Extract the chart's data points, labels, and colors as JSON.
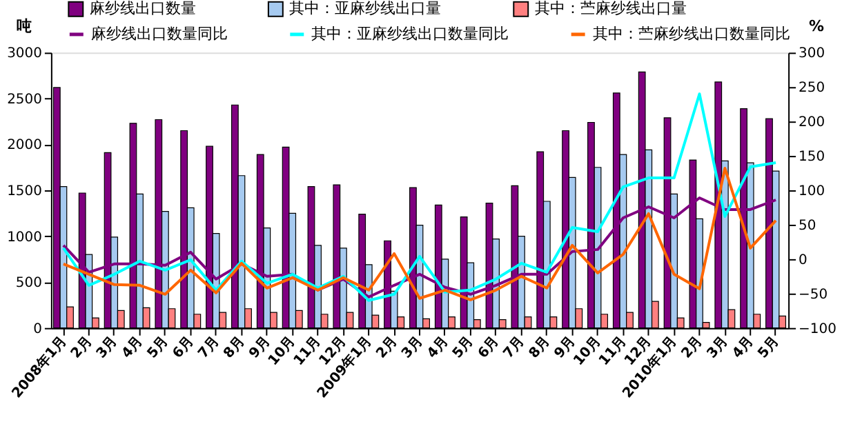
{
  "chart_data": {
    "type": "bar",
    "ylabel": "吨",
    "y2label": "%",
    "categories": [
      "2008年1月",
      "2月",
      "3月",
      "4月",
      "5月",
      "6月",
      "7月",
      "8月",
      "9月",
      "10月",
      "11月",
      "12月",
      "2009年1月",
      "2月",
      "3月",
      "4月",
      "5月",
      "6月",
      "7月",
      "8月",
      "9月",
      "10月",
      "11月",
      "12月",
      "2010年1月",
      "2月",
      "3月",
      "4月",
      "5月"
    ],
    "series": [
      {
        "name": "麻纱线出口数量",
        "type": "bar",
        "color": "#800080",
        "values": [
          2620,
          1470,
          1910,
          2230,
          2270,
          2150,
          1980,
          2430,
          1890,
          1970,
          1540,
          1560,
          1240,
          950,
          1530,
          1340,
          1210,
          1360,
          1550,
          1920,
          2150,
          2240,
          2560,
          2790,
          2290,
          1830,
          2680,
          2390,
          2280
        ]
      },
      {
        "name": "其中：亚麻纱线出口量",
        "type": "bar",
        "color": "#a6caf0",
        "values": [
          1540,
          800,
          990,
          1460,
          1270,
          1310,
          1030,
          1660,
          1090,
          1250,
          900,
          870,
          690,
          400,
          1120,
          750,
          710,
          970,
          1000,
          1380,
          1640,
          1750,
          1890,
          1940,
          1460,
          1190,
          1820,
          1800,
          1710
        ]
      },
      {
        "name": "其中：苎麻纱线出口量",
        "type": "bar",
        "color": "#ff8080",
        "values": [
          230,
          110,
          190,
          220,
          210,
          150,
          170,
          210,
          170,
          190,
          150,
          170,
          140,
          120,
          100,
          120,
          90,
          90,
          120,
          120,
          210,
          150,
          170,
          290,
          110,
          60,
          200,
          150,
          130
        ]
      },
      {
        "name": "麻纱线出口数量同比",
        "type": "line",
        "axis": "y2",
        "color": "#800080",
        "values": [
          20,
          -19,
          -7,
          -7,
          -9,
          10,
          -29,
          -7,
          -25,
          -22,
          -45,
          -29,
          -55,
          -38,
          -22,
          -41,
          -51,
          -38,
          -22,
          -22,
          11,
          14,
          60,
          76,
          60,
          89,
          72,
          72,
          86
        ]
      },
      {
        "name": "其中：亚麻纱线出口数量同比",
        "type": "line",
        "axis": "y2",
        "color": "#00ffff",
        "values": [
          16,
          -38,
          -22,
          -3,
          -16,
          -1,
          -45,
          -3,
          -35,
          -22,
          -42,
          -25,
          -60,
          -51,
          4,
          -48,
          -45,
          -29,
          -6,
          -19,
          46,
          40,
          105,
          118,
          118,
          240,
          62,
          134,
          140
        ]
      },
      {
        "name": "其中：苎麻纱线出口数量同比",
        "type": "line",
        "axis": "y2",
        "color": "#ff6600",
        "values": [
          -7,
          -22,
          -37,
          -38,
          -51,
          -16,
          -49,
          -6,
          -42,
          -27,
          -45,
          -27,
          -45,
          8,
          -57,
          -45,
          -59,
          -45,
          -25,
          -42,
          20,
          -20,
          7,
          66,
          -22,
          -43,
          132,
          16,
          56
        ]
      }
    ],
    "ylim": [
      0,
      3000
    ],
    "yticks": [
      0,
      500,
      1000,
      1500,
      2000,
      2500,
      3000
    ],
    "y2lim": [
      -100,
      300
    ],
    "y2ticks": [
      -100,
      -50,
      0,
      50,
      100,
      150,
      200,
      250,
      300
    ],
    "legend": "top",
    "grid": false
  }
}
